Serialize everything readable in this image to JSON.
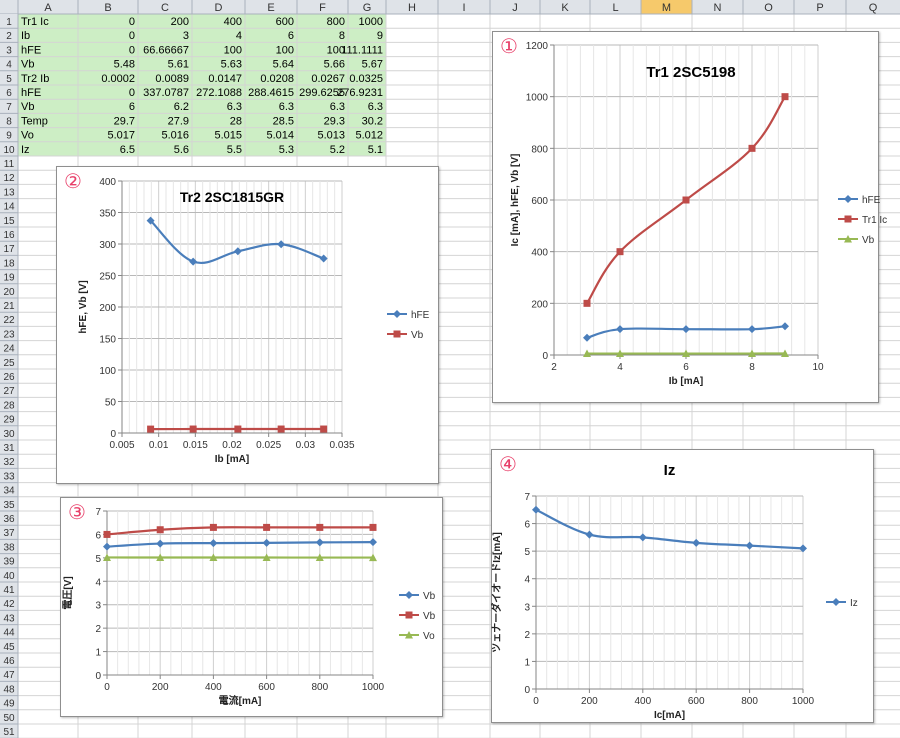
{
  "spreadsheet": {
    "columns": [
      "A",
      "B",
      "C",
      "D",
      "E",
      "F",
      "G",
      "H",
      "I",
      "J",
      "K",
      "L",
      "M",
      "N",
      "O",
      "P",
      "Q"
    ],
    "selected_column": "M",
    "row_count": 51,
    "rows": [
      [
        "Tr1 Ic",
        "0",
        "200",
        "400",
        "600",
        "800",
        "1000"
      ],
      [
        "Ib",
        "0",
        "3",
        "4",
        "6",
        "8",
        "9"
      ],
      [
        "hFE",
        "0",
        "66.66667",
        "100",
        "100",
        "100",
        "111.1111"
      ],
      [
        "Vb",
        "5.48",
        "5.61",
        "5.63",
        "5.64",
        "5.66",
        "5.67"
      ],
      [
        "Tr2 Ib",
        "0.0002",
        "0.0089",
        "0.0147",
        "0.0208",
        "0.0267",
        "0.0325"
      ],
      [
        "hFE",
        "0",
        "337.0787",
        "272.1088",
        "288.4615",
        "299.6255",
        "276.9231"
      ],
      [
        "Vb",
        "6",
        "6.2",
        "6.3",
        "6.3",
        "6.3",
        "6.3"
      ],
      [
        "Temp",
        "29.7",
        "27.9",
        "28",
        "28.5",
        "29.3",
        "30.2"
      ],
      [
        "Vo",
        "5.017",
        "5.016",
        "5.015",
        "5.014",
        "5.013",
        "5.012"
      ],
      [
        "Iz",
        "6.5",
        "5.6",
        "5.5",
        "5.3",
        "5.2",
        "5.1"
      ]
    ]
  },
  "colors": {
    "hfe": "#4a7ebb",
    "red": "#be4b48",
    "green": "#98b954",
    "cell_fill": "#cdeec5",
    "header_fill": "#dfe3e8",
    "header_selected": "#f6c96b",
    "grid": "#d4d4d4",
    "circle_number": "#e8406a"
  },
  "chart_data": [
    {
      "marker": "①",
      "type": "line",
      "title": "Tr1 2SC5198",
      "xlabel": "Ib [mA]",
      "ylabel": "Ic [mA], hFE, Vb [V]",
      "xlim": [
        2,
        10
      ],
      "ylim": [
        0,
        1200
      ],
      "xticks": [
        2,
        4,
        6,
        8,
        10
      ],
      "yticks": [
        0,
        200,
        400,
        600,
        800,
        1000,
        1200
      ],
      "grid": true,
      "legend": "right",
      "series": [
        {
          "name": "hFE",
          "color": "#4a7ebb",
          "shape": "diamond",
          "x": [
            3,
            4,
            6,
            8,
            9
          ],
          "y": [
            66.67,
            100,
            100,
            100,
            111.11
          ]
        },
        {
          "name": "Tr1 Ic",
          "color": "#be4b48",
          "shape": "square",
          "x": [
            3,
            4,
            6,
            8,
            9
          ],
          "y": [
            200,
            400,
            600,
            800,
            1000
          ]
        },
        {
          "name": "Vb",
          "color": "#98b954",
          "shape": "triangle",
          "x": [
            3,
            4,
            6,
            8,
            9
          ],
          "y": [
            5.61,
            5.63,
            5.64,
            5.66,
            5.67
          ]
        }
      ]
    },
    {
      "marker": "②",
      "type": "line",
      "title": "Tr2 2SC1815GR",
      "xlabel": "Ib [mA]",
      "ylabel": "hFE, Vb [V]",
      "xlim": [
        0.005,
        0.035
      ],
      "ylim": [
        0,
        400
      ],
      "xticks": [
        0.005,
        0.01,
        0.015,
        0.02,
        0.025,
        0.03,
        0.035
      ],
      "xtick_labels": [
        "0.005",
        "0.01",
        "0.015",
        "0.02",
        "0.025",
        "0.03",
        "0.035"
      ],
      "yticks": [
        0,
        50,
        100,
        150,
        200,
        250,
        300,
        350,
        400
      ],
      "grid": true,
      "legend": "right",
      "series": [
        {
          "name": "hFE",
          "color": "#4a7ebb",
          "shape": "diamond",
          "x": [
            0.0089,
            0.0147,
            0.0208,
            0.0267,
            0.0325
          ],
          "y": [
            337.08,
            272.11,
            288.46,
            299.63,
            276.92
          ]
        },
        {
          "name": "Vb",
          "color": "#be4b48",
          "shape": "square",
          "x": [
            0.0089,
            0.0147,
            0.0208,
            0.0267,
            0.0325
          ],
          "y": [
            6.2,
            6.3,
            6.3,
            6.3,
            6.3
          ]
        }
      ]
    },
    {
      "marker": "③",
      "type": "line",
      "title": "",
      "xlabel": "電流[mA]",
      "ylabel": "電圧[V]",
      "xlim": [
        0,
        1000
      ],
      "ylim": [
        0,
        7
      ],
      "xticks": [
        0,
        200,
        400,
        600,
        800,
        1000
      ],
      "yticks": [
        0,
        1,
        2,
        3,
        4,
        5,
        6,
        7
      ],
      "grid": true,
      "legend": "right",
      "series": [
        {
          "name": "Vb",
          "color": "#4a7ebb",
          "shape": "diamond",
          "x": [
            0,
            200,
            400,
            600,
            800,
            1000
          ],
          "y": [
            5.48,
            5.61,
            5.63,
            5.64,
            5.66,
            5.67
          ]
        },
        {
          "name": "Vb",
          "color": "#be4b48",
          "shape": "square",
          "x": [
            0,
            200,
            400,
            600,
            800,
            1000
          ],
          "y": [
            6,
            6.2,
            6.3,
            6.3,
            6.3,
            6.3
          ]
        },
        {
          "name": "Vo",
          "color": "#98b954",
          "shape": "triangle",
          "x": [
            0,
            200,
            400,
            600,
            800,
            1000
          ],
          "y": [
            5.017,
            5.016,
            5.015,
            5.014,
            5.013,
            5.012
          ]
        }
      ]
    },
    {
      "marker": "④",
      "type": "line",
      "title": "Iz",
      "xlabel": "Ic[mA]",
      "ylabel": "ツェナーダイオードIz[mA]",
      "xlim": [
        0,
        1000
      ],
      "ylim": [
        0,
        7
      ],
      "xticks": [
        0,
        200,
        400,
        600,
        800,
        1000
      ],
      "yticks": [
        0,
        1,
        2,
        3,
        4,
        5,
        6,
        7
      ],
      "grid": true,
      "legend": "right",
      "series": [
        {
          "name": "Iz",
          "color": "#4a7ebb",
          "shape": "diamond",
          "x": [
            0,
            200,
            400,
            600,
            800,
            1000
          ],
          "y": [
            6.5,
            5.6,
            5.5,
            5.3,
            5.2,
            5.1
          ]
        }
      ]
    }
  ]
}
